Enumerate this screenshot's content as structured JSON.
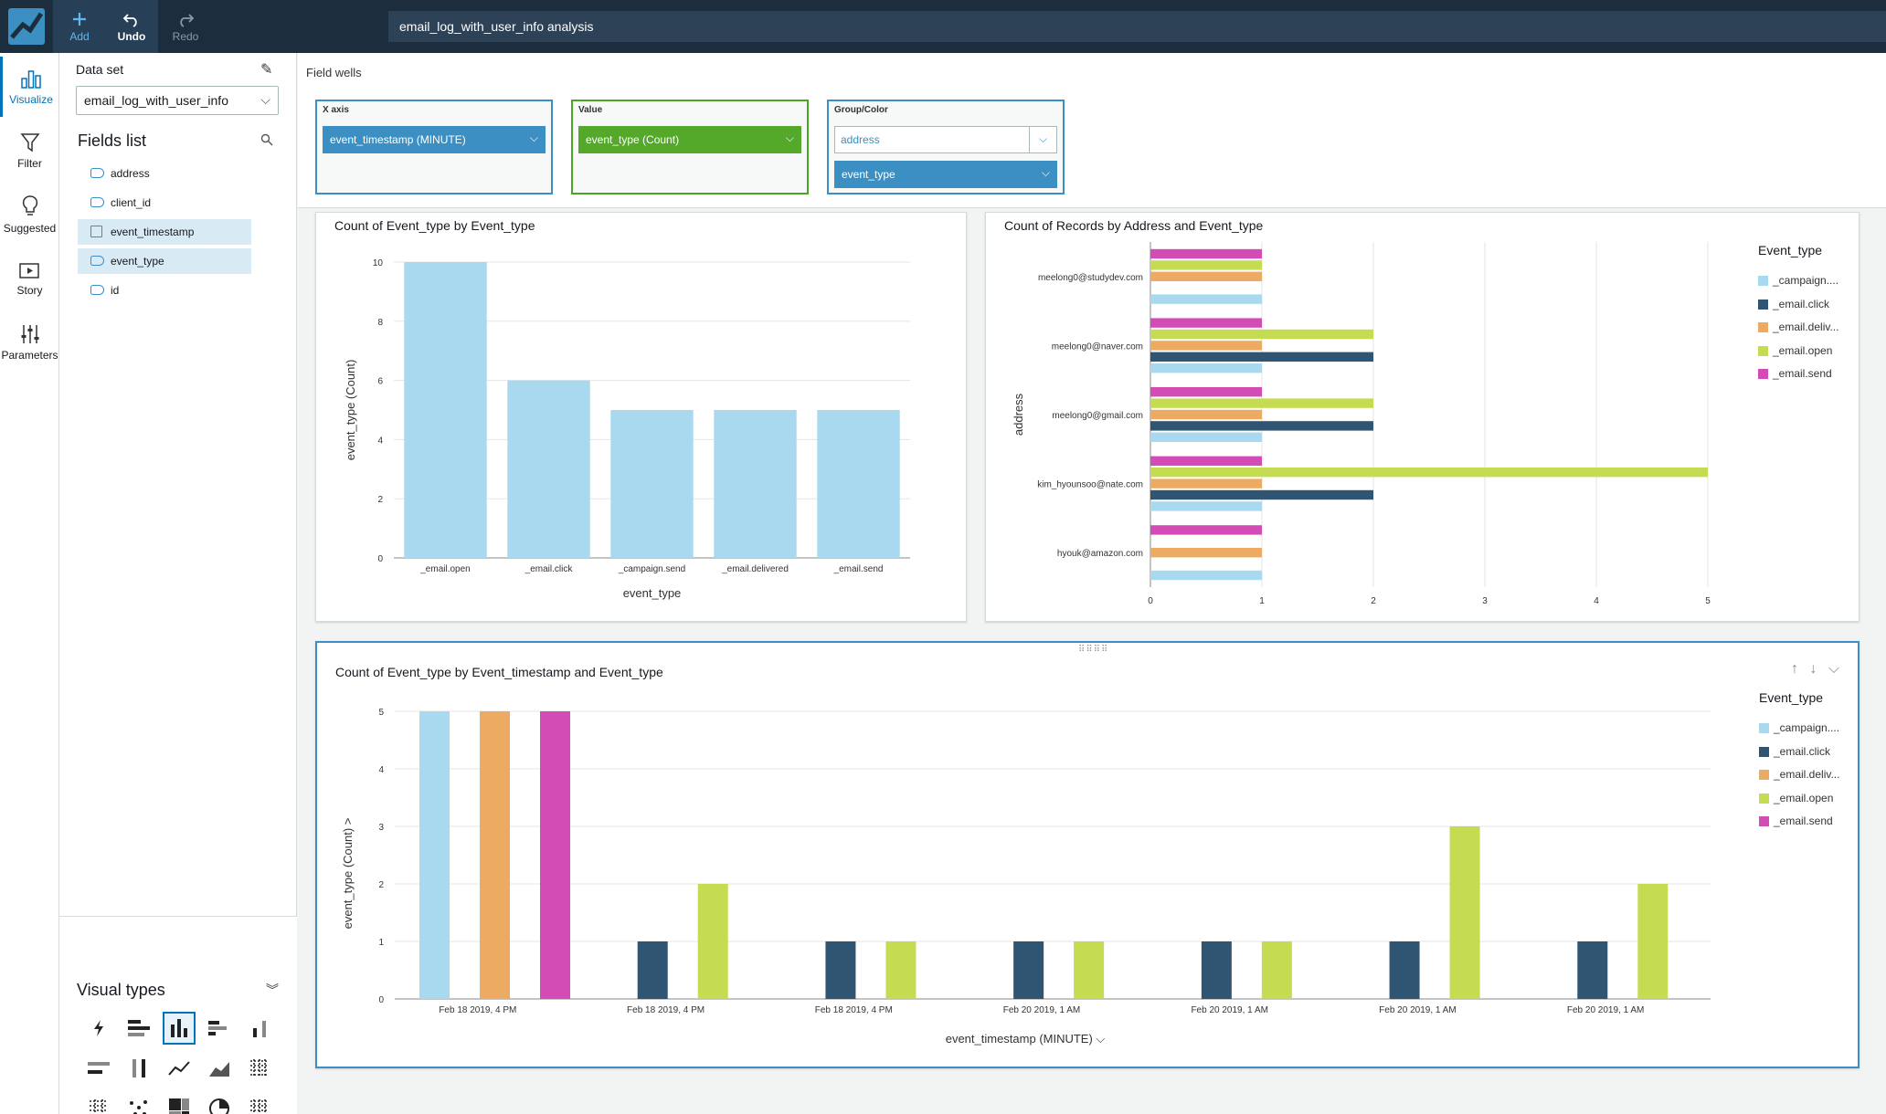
{
  "topbar": {
    "add_label": "Add",
    "undo_label": "Undo",
    "redo_label": "Redo",
    "analysis_title": "email_log_with_user_info analysis"
  },
  "rail": {
    "items": [
      {
        "label": "Visualize",
        "icon": "bar-chart-icon"
      },
      {
        "label": "Filter",
        "icon": "filter-icon"
      },
      {
        "label": "Suggested",
        "icon": "lightbulb-icon"
      },
      {
        "label": "Story",
        "icon": "story-icon"
      },
      {
        "label": "Parameters",
        "icon": "sliders-icon"
      }
    ]
  },
  "side": {
    "dataset_label": "Data set",
    "dataset_value": "email_log_with_user_info",
    "fields_title": "Fields list",
    "fields": [
      {
        "name": "address",
        "type": "string",
        "selected": false
      },
      {
        "name": "client_id",
        "type": "string",
        "selected": false
      },
      {
        "name": "event_timestamp",
        "type": "date",
        "selected": true
      },
      {
        "name": "event_type",
        "type": "string",
        "selected": true
      },
      {
        "name": "id",
        "type": "string",
        "selected": false
      }
    ],
    "visual_types_title": "Visual types"
  },
  "wells": {
    "label": "Field wells",
    "x_axis": {
      "title": "X axis",
      "value": "event_timestamp (MINUTE)"
    },
    "value": {
      "title": "Value",
      "value": "event_type (Count)"
    },
    "group": {
      "title": "Group/Color",
      "placeholder": "address",
      "value": "event_type"
    }
  },
  "colors": {
    "campaign": "#a8d9ee",
    "click": "#2f5573",
    "delivered": "#ecaa62",
    "open": "#c5dc52",
    "send": "#d34cb6"
  },
  "chart_data": [
    {
      "type": "bar",
      "title": "Count of Event_type by Event_type",
      "categories": [
        "_email.open",
        "_email.click",
        "_campaign.send",
        "_email.delivered",
        "_email.send"
      ],
      "values": [
        10,
        6,
        5,
        5,
        5
      ],
      "xlabel": "event_type",
      "ylabel": "event_type (Count)",
      "ylim": [
        0,
        10
      ],
      "yticks": [
        "0",
        "2",
        "4",
        "6",
        "8",
        "10"
      ]
    },
    {
      "type": "bar",
      "orientation": "horizontal",
      "title": "Count of Records by Address and Event_type",
      "ylabel": "address",
      "categories": [
        "meelong0@studydev.com",
        "meelong0@naver.com",
        "meelong0@gmail.com",
        "kim_hyounsoo@nate.com",
        "hyouk@amazon.com"
      ],
      "legend_title": "Event_type",
      "legend_labels": [
        "_campaign....",
        "_email.click",
        "_email.deliv...",
        "_email.open",
        "_email.send"
      ],
      "series": [
        {
          "name": "_email.send",
          "values": [
            1,
            1,
            1,
            1,
            1
          ]
        },
        {
          "name": "_email.open",
          "values": [
            1,
            2,
            2,
            5,
            0
          ]
        },
        {
          "name": "_email.delivered",
          "values": [
            1,
            1,
            1,
            1,
            1
          ]
        },
        {
          "name": "_email.click",
          "values": [
            0,
            2,
            2,
            2,
            0
          ]
        },
        {
          "name": "_campaign.send",
          "values": [
            1,
            1,
            1,
            1,
            1
          ]
        }
      ],
      "xlim": [
        0,
        5
      ],
      "xticks": [
        "0",
        "1",
        "2",
        "3",
        "4",
        "5"
      ],
      "legend": "right"
    },
    {
      "type": "bar",
      "title": "Count of Event_type by Event_timestamp and Event_type",
      "categories": [
        "Feb 18 2019, 4 PM",
        "Feb 18 2019, 4 PM",
        "Feb 18 2019, 4 PM",
        "Feb 20 2019, 1 AM",
        "Feb 20 2019, 1 AM",
        "Feb 20 2019, 1 AM",
        "Feb 20 2019, 1 AM"
      ],
      "legend_title": "Event_type",
      "legend_labels": [
        "_campaign....",
        "_email.click",
        "_email.deliv...",
        "_email.open",
        "_email.send"
      ],
      "series": [
        {
          "name": "_campaign.send",
          "values": [
            5,
            0,
            0,
            0,
            0,
            0,
            0
          ]
        },
        {
          "name": "_email.click",
          "values": [
            0,
            1,
            1,
            1,
            1,
            1,
            1
          ]
        },
        {
          "name": "_email.delivered",
          "values": [
            5,
            0,
            0,
            0,
            0,
            0,
            0
          ]
        },
        {
          "name": "_email.open",
          "values": [
            0,
            2,
            1,
            1,
            1,
            3,
            2
          ]
        },
        {
          "name": "_email.send",
          "values": [
            5,
            0,
            0,
            0,
            0,
            0,
            0
          ]
        }
      ],
      "xlabel": "event_timestamp (MINUTE)",
      "ylabel": "event_type (Count)",
      "ylim": [
        0,
        5
      ],
      "yticks": [
        "0",
        "1",
        "2",
        "3",
        "4",
        "5"
      ],
      "legend": "right"
    }
  ]
}
